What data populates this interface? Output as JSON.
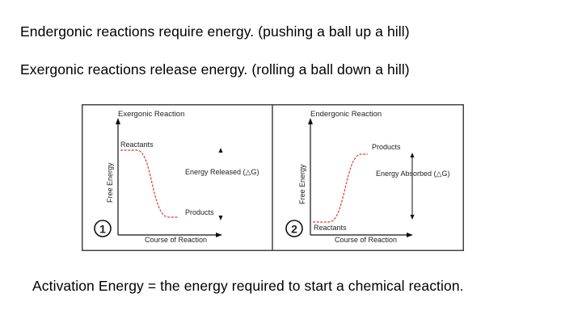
{
  "slide": {
    "line1": "Endergonic reactions require energy. (pushing a ball up a hill)",
    "line2": "Exergonic reactions release energy.  (rolling a ball down a hill)",
    "line3": "Activation Energy = the energy required to start a chemical reaction."
  },
  "figure": {
    "panels": [
      {
        "title": "Exergonic Reaction",
        "y_axis": "Free Energy",
        "x_axis": "Course of Reaction",
        "start_label": "Reactants",
        "end_label": "Products",
        "delta_label": "Energy Released (△G)",
        "number": "1"
      },
      {
        "title": "Endergonic Reaction",
        "y_axis": "Free Energy",
        "x_axis": "Course of Reaction",
        "start_label": "Reactants",
        "end_label": "Products",
        "delta_label": "Energy Absorbed (△G)",
        "number": "2"
      }
    ],
    "colors": {
      "curve": "#e8382e",
      "frame": "#444444",
      "axis": "#111111"
    }
  }
}
